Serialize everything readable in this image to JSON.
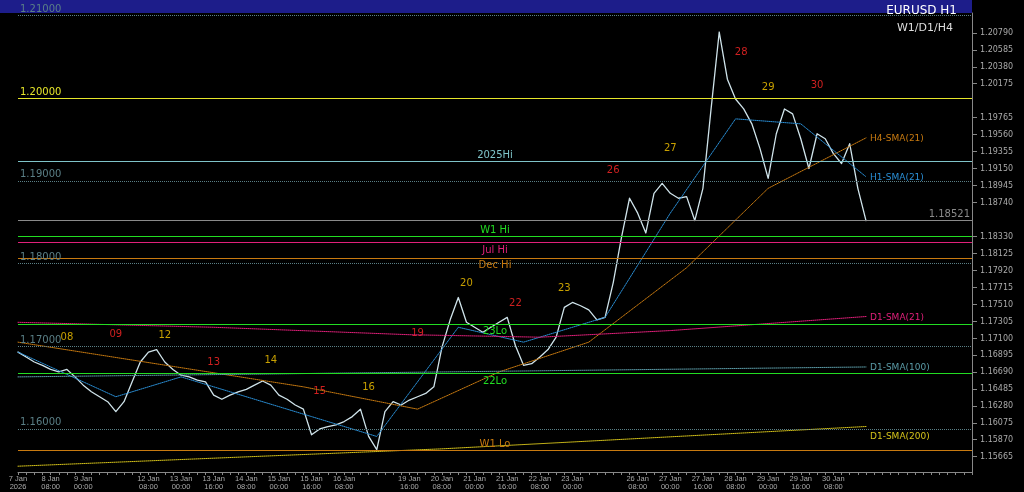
{
  "chart_data": {
    "type": "line",
    "title": "EURUSD H1",
    "subtitle": "W1/D1/H4",
    "categories": [
      "7 Jan 2026",
      null,
      null,
      null,
      "8 Jan 08:00",
      null,
      null,
      null,
      "9 Jan 00:00",
      null,
      null,
      null,
      null,
      null,
      null,
      null,
      "12 Jan 08:00",
      null,
      null,
      null,
      "13 Jan 00:00",
      null,
      null,
      null,
      "13 Jan 16:00",
      null,
      null,
      null,
      "14 Jan 08:00",
      null,
      null,
      null,
      "15 Jan 00:00",
      null,
      null,
      null,
      "15 Jan 16:00",
      null,
      null,
      null,
      "16 Jan 08:00",
      null,
      null,
      null,
      null,
      null,
      null,
      null,
      "19 Jan 16:00",
      null,
      null,
      null,
      "20 Jan 08:00",
      null,
      null,
      null,
      "21 Jan 00:00",
      null,
      null,
      null,
      "21 Jan 16:00",
      null,
      null,
      null,
      "22 Jan 08:00",
      null,
      null,
      null,
      "23 Jan 00:00",
      null,
      null,
      null,
      null,
      null,
      null,
      null,
      "26 Jan 08:00",
      null,
      null,
      null,
      "27 Jan 00:00",
      null,
      null,
      null,
      "27 Jan 16:00",
      null,
      null,
      null,
      "28 Jan 08:00",
      null,
      null,
      null,
      "29 Jan 00:00",
      null,
      null,
      null,
      "29 Jan 16:00",
      null,
      null,
      null,
      "30 Jan 08:00",
      null,
      null,
      null,
      null
    ],
    "series": [
      {
        "color": "#cfe3ea",
        "values": [
          1.1693,
          1.1687,
          1.1681,
          1.1677,
          1.1672,
          1.1669,
          1.1672,
          1.1663,
          1.1653,
          1.1645,
          1.1639,
          1.1633,
          1.1621,
          1.1633,
          1.1657,
          1.1681,
          1.1693,
          1.1696,
          1.1681,
          1.1672,
          1.1665,
          1.1663,
          1.1659,
          1.1657,
          1.1641,
          1.1636,
          1.1641,
          1.1645,
          1.1648,
          1.1653,
          1.1658,
          1.1653,
          1.1641,
          1.1636,
          1.1629,
          1.1624,
          1.1593,
          1.16,
          1.1603,
          1.1605,
          1.1609,
          1.1615,
          1.1624,
          1.1591,
          1.1575,
          1.1621,
          1.1633,
          1.1629,
          1.1635,
          1.1639,
          1.1643,
          1.1651,
          1.1699,
          1.1732,
          1.1759,
          1.1729,
          1.1723,
          1.1717,
          1.1723,
          1.1729,
          1.1735,
          1.1701,
          1.1677,
          1.1679,
          1.1687,
          1.1696,
          1.1711,
          1.1747,
          1.1753,
          1.1749,
          1.1744,
          1.1732,
          1.1735,
          1.1777,
          1.1831,
          1.1879,
          1.1861,
          1.1837,
          1.1885,
          1.1897,
          1.1885,
          1.1879,
          1.1881,
          1.1852,
          1.1891,
          1.1987,
          1.208,
          1.2023,
          1.1999,
          1.1987,
          1.1969,
          1.1939,
          1.1903,
          1.1957,
          1.1987,
          1.1981,
          1.1951,
          1.1915,
          1.1957,
          1.1951,
          1.1933,
          1.1921,
          1.1945,
          1.1891,
          1.1852
        ]
      },
      {
        "name": "H4-SMA(21)",
        "color": "#c87a10",
        "line_style": "dotted",
        "values": [
          1.1705,
          null,
          null,
          null,
          null,
          null,
          null,
          null,
          null,
          null,
          null,
          null,
          null,
          null,
          null,
          null,
          null,
          null,
          null,
          null,
          null,
          null,
          null,
          null,
          null,
          null,
          null,
          null,
          null,
          null,
          null,
          null,
          null,
          null,
          null,
          1.1651,
          null,
          null,
          null,
          null,
          null,
          null,
          null,
          null,
          null,
          null,
          null,
          null,
          null,
          1.1624,
          null,
          null,
          null,
          null,
          null,
          null,
          null,
          null,
          null,
          1.1669,
          null,
          null,
          null,
          null,
          null,
          null,
          null,
          null,
          null,
          null,
          1.1705,
          null,
          null,
          null,
          null,
          null,
          null,
          null,
          null,
          null,
          null,
          null,
          1.1795,
          null,
          null,
          null,
          null,
          null,
          null,
          null,
          null,
          null,
          1.1891,
          null,
          null,
          null,
          null,
          null,
          null,
          null,
          null,
          null,
          null,
          null,
          1.1952
        ]
      },
      {
        "name": "H1-SMA(21)",
        "color": "#2a8fd6",
        "line_style": "dotted",
        "values": [
          1.1693,
          null,
          null,
          null,
          null,
          null,
          null,
          null,
          null,
          null,
          null,
          null,
          1.1639,
          null,
          null,
          null,
          null,
          null,
          null,
          null,
          1.1663,
          null,
          null,
          null,
          null,
          null,
          null,
          null,
          null,
          null,
          null,
          null,
          null,
          null,
          null,
          null,
          1.1615,
          null,
          null,
          null,
          null,
          null,
          null,
          null,
          1.1591,
          null,
          null,
          null,
          null,
          null,
          null,
          null,
          null,
          null,
          1.1723,
          null,
          null,
          null,
          null,
          null,
          null,
          null,
          1.1705,
          null,
          null,
          null,
          null,
          null,
          null,
          null,
          null,
          null,
          1.1735,
          null,
          null,
          null,
          null,
          null,
          null,
          null,
          1.1861,
          null,
          null,
          null,
          null,
          null,
          null,
          null,
          1.1975,
          null,
          null,
          null,
          null,
          null,
          null,
          null,
          1.1969,
          null,
          null,
          null,
          null,
          null,
          null,
          null,
          1.1905
        ]
      },
      {
        "name": "D1-SMA(21)",
        "color": "#e0207a",
        "line_style": "dotted",
        "values": [
          1.1729,
          null,
          null,
          null,
          null,
          null,
          null,
          null,
          null,
          null,
          null,
          null,
          null,
          null,
          null,
          null,
          null,
          null,
          null,
          null,
          null,
          null,
          null,
          null,
          1.1723,
          null,
          null,
          null,
          null,
          null,
          null,
          null,
          null,
          null,
          null,
          null,
          null,
          null,
          null,
          null,
          null,
          null,
          null,
          null,
          null,
          null,
          null,
          null,
          1.1714,
          null,
          null,
          null,
          null,
          null,
          null,
          null,
          null,
          null,
          null,
          null,
          null,
          null,
          null,
          null,
          1.1711,
          null,
          null,
          null,
          null,
          null,
          null,
          null,
          null,
          null,
          null,
          null,
          null,
          null,
          null,
          null,
          1.1719,
          null,
          null,
          null,
          null,
          null,
          null,
          null,
          null,
          null,
          null,
          null,
          null,
          null,
          null,
          null,
          null,
          null,
          null,
          null,
          null,
          null,
          null,
          null,
          1.1736
        ]
      },
      {
        "name": "D1-SMA(100)",
        "color": "#5a9aa6",
        "line_style": "dotted",
        "values": [
          1.1663,
          null,
          null,
          null,
          null,
          null,
          null,
          null,
          null,
          null,
          null,
          null,
          null,
          null,
          null,
          null,
          null,
          null,
          null,
          null,
          null,
          null,
          null,
          null,
          null,
          null,
          null,
          null,
          null,
          null,
          null,
          null,
          null,
          null,
          null,
          null,
          null,
          null,
          null,
          null,
          null,
          null,
          null,
          null,
          null,
          null,
          null,
          null,
          null,
          null,
          null,
          null,
          null,
          null,
          null,
          null,
          null,
          null,
          null,
          null,
          null,
          null,
          null,
          null,
          null,
          null,
          null,
          null,
          null,
          null,
          null,
          null,
          null,
          null,
          null,
          null,
          null,
          null,
          null,
          null,
          null,
          null,
          null,
          null,
          null,
          null,
          null,
          null,
          null,
          null,
          null,
          null,
          null,
          null,
          null,
          null,
          null,
          null,
          null,
          null,
          null,
          null,
          null,
          null,
          1.1675
        ]
      },
      {
        "name": "D1-SMA(200)",
        "color": "#d4c21a",
        "line_style": "dotted",
        "values": [
          1.1555,
          null,
          null,
          null,
          null,
          null,
          null,
          null,
          null,
          null,
          null,
          null,
          null,
          null,
          null,
          null,
          null,
          null,
          null,
          null,
          null,
          null,
          null,
          null,
          null,
          null,
          null,
          null,
          null,
          null,
          null,
          null,
          null,
          null,
          null,
          null,
          null,
          null,
          null,
          null,
          null,
          null,
          null,
          null,
          null,
          null,
          null,
          null,
          null,
          null,
          null,
          null,
          1.1576,
          null,
          null,
          null,
          null,
          null,
          null,
          null,
          null,
          null,
          null,
          null,
          null,
          null,
          null,
          null,
          null,
          null,
          null,
          null,
          null,
          null,
          null,
          null,
          null,
          null,
          null,
          null,
          null,
          null,
          null,
          null,
          null,
          null,
          null,
          null,
          null,
          null,
          null,
          null,
          null,
          null,
          null,
          null,
          null,
          null,
          null,
          null,
          null,
          null,
          null,
          null,
          1.1603
        ]
      }
    ],
    "ylim": [
      1.1548,
      1.2103
    ],
    "yticks": [
      {
        "value": 1.15665,
        "label": "1.15665"
      },
      {
        "value": 1.1587,
        "label": "1.15870"
      },
      {
        "value": 1.16075,
        "label": "1.16075"
      },
      {
        "value": 1.1628,
        "label": "1.16280"
      },
      {
        "value": 1.16485,
        "label": "1.16485"
      },
      {
        "value": 1.1669,
        "label": "1.16690"
      },
      {
        "value": 1.16895,
        "label": "1.16895"
      },
      {
        "value": 1.171,
        "label": "1.17100"
      },
      {
        "value": 1.17305,
        "label": "1.17305"
      },
      {
        "value": 1.1751,
        "label": "1.17510"
      },
      {
        "value": 1.17715,
        "label": "1.17715"
      },
      {
        "value": 1.1792,
        "label": "1.17920"
      },
      {
        "value": 1.18125,
        "label": "1.18125"
      },
      {
        "value": 1.1833,
        "label": "1.18330"
      },
      {
        "value": 1.1874,
        "label": "1.18740"
      },
      {
        "value": 1.18945,
        "label": "1.18945"
      },
      {
        "value": 1.1915,
        "label": "1.19150"
      },
      {
        "value": 1.19355,
        "label": "1.19355"
      },
      {
        "value": 1.1956,
        "label": "1.19560"
      },
      {
        "value": 1.19765,
        "label": "1.19765"
      },
      {
        "value": 1.20175,
        "label": "1.20175"
      },
      {
        "value": 1.2038,
        "label": "1.20380"
      },
      {
        "value": 1.20585,
        "label": "1.20585"
      },
      {
        "value": 1.2079,
        "label": "1.20790"
      }
    ],
    "ref_lines": [
      {
        "axis": "y",
        "value": 1.21,
        "label": "1.21000",
        "color": "#5a7f86",
        "line_style": "dotted"
      },
      {
        "axis": "y",
        "value": 1.2,
        "label": "1.20000",
        "color": "#e6e62a",
        "line_style": "solid"
      },
      {
        "axis": "y",
        "value": 1.19,
        "label": "1.19000",
        "color": "#5a7f86",
        "line_style": "dotted"
      },
      {
        "axis": "y",
        "value": 1.18521,
        "label": "1.18521",
        "color": "#8a8a8a",
        "line_style": "solid"
      },
      {
        "axis": "y",
        "value": 1.18,
        "label": "1.18000",
        "color": "#5a7f86",
        "line_style": "dotted"
      },
      {
        "axis": "y",
        "value": 1.17,
        "label": "1.17000",
        "color": "#5a7f86",
        "line_style": "dotted"
      },
      {
        "axis": "y",
        "value": 1.16,
        "label": "1.16000",
        "color": "#5a7f86",
        "line_style": "dotted"
      },
      {
        "axis": "y",
        "value": 1.1924,
        "label": "2025Hi",
        "color": "#7fc4c9",
        "line_style": "solid"
      },
      {
        "axis": "y",
        "value": 1.1826,
        "label": "Jul Hi",
        "color": "#e0207a",
        "line_style": "solid"
      },
      {
        "axis": "y",
        "value": 1.1833,
        "label": "W1 Hi",
        "color": "#22dd22",
        "line_style": "solid"
      },
      {
        "axis": "y",
        "value": 1.1807,
        "label": "Dec Hi",
        "color": "#c87a10",
        "line_style": "solid"
      },
      {
        "axis": "y",
        "value": 1.1727,
        "label": "23Lo",
        "color": "#22dd22",
        "line_style": "solid"
      },
      {
        "axis": "y",
        "value": 1.1667,
        "label": "22Lo",
        "color": "#22dd22",
        "line_style": "solid"
      },
      {
        "axis": "y",
        "value": 1.1574,
        "label": "W1 Lo",
        "color": "#c87a10",
        "line_style": "solid"
      }
    ],
    "annotations": [
      "08",
      "09",
      "12",
      "13",
      "14",
      "15",
      "16",
      "19",
      "20",
      "22",
      "23",
      "26",
      "27",
      "28",
      "29",
      "30"
    ],
    "legend": false,
    "grid": false,
    "marker": "none",
    "line_style": "solid"
  }
}
